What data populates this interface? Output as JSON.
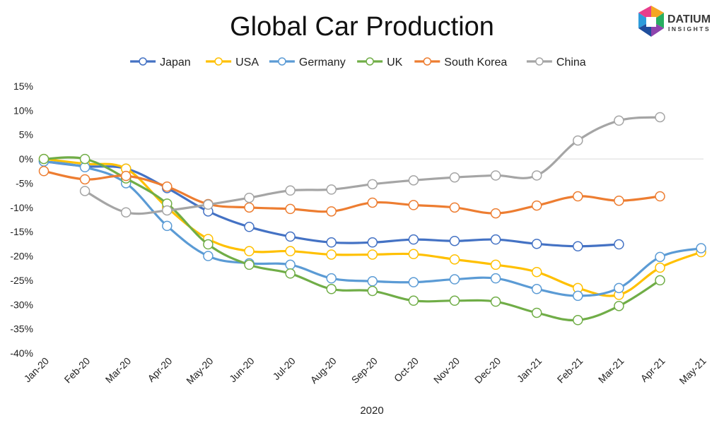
{
  "logo": {
    "name": "DATIUM",
    "sub": "INSIGHTS"
  },
  "chart_data": {
    "type": "line",
    "title": "Global Car Production",
    "xlabel": "2020",
    "ylabel": "",
    "ylim": [
      -40,
      15
    ],
    "yticks": [
      15,
      10,
      5,
      0,
      -5,
      -10,
      -15,
      -20,
      -25,
      -30,
      -35,
      -40
    ],
    "ytick_labels": [
      "15%",
      "10%",
      "5%",
      "0%",
      "-5%",
      "-10%",
      "-15%",
      "-20%",
      "-25%",
      "-30%",
      "-35%",
      "-40%"
    ],
    "grid": "zero-line only",
    "legend_position": "top",
    "categories": [
      "Jan-20",
      "Feb-20",
      "Mar-20",
      "Apr-20",
      "May-20",
      "Jun-20",
      "Jul-20",
      "Aug-20",
      "Sep-20",
      "Oct-20",
      "Nov-20",
      "Dec-20",
      "Jan-21",
      "Feb-21",
      "Mar-21",
      "Apr-21",
      "May-21"
    ],
    "series": [
      {
        "name": "Japan",
        "color": "#4472C4",
        "values": [
          -0.5,
          -1.5,
          -2,
          -6,
          -10.8,
          -14,
          -16,
          -17.2,
          -17.2,
          -16.6,
          -16.9,
          -16.6,
          -17.5,
          -18,
          -17.6,
          null,
          null
        ]
      },
      {
        "name": "USA",
        "color": "#FFC000",
        "values": [
          0,
          -1.0,
          -2,
          -10,
          -16.5,
          -19,
          -19,
          -19.7,
          -19.7,
          -19.6,
          -20.7,
          -21.8,
          -23.3,
          -26.6,
          -28,
          -22.4,
          -19.2
        ]
      },
      {
        "name": "Germany",
        "color": "#5B9BD5",
        "values": [
          -0.5,
          -1.7,
          -5,
          -13.8,
          -20,
          -21.5,
          -21.8,
          -24.6,
          -25.2,
          -25.4,
          -24.8,
          -24.6,
          -26.8,
          -28.2,
          -26.6,
          -20.2,
          -18.4
        ]
      },
      {
        "name": "UK",
        "color": "#70AD47",
        "values": [
          0,
          0,
          -4,
          -9.2,
          -17.6,
          -21.8,
          -23.6,
          -26.8,
          -27.2,
          -29.2,
          -29.2,
          -29.4,
          -31.7,
          -33.2,
          -30.3,
          -25,
          null
        ]
      },
      {
        "name": "South Korea",
        "color": "#ED7D31",
        "values": [
          -2.5,
          -4.2,
          -3.5,
          -5.7,
          -9.3,
          -10,
          -10.3,
          -10.8,
          -9,
          -9.5,
          -10,
          -11.2,
          -9.6,
          -7.7,
          -8.6,
          -7.7,
          null
        ]
      },
      {
        "name": "China",
        "color": "#A5A5A5",
        "values": [
          null,
          -6.6,
          -11,
          -10.6,
          -9.4,
          -8,
          -6.5,
          -6.3,
          -5.2,
          -4.4,
          -3.8,
          -3.4,
          -3.4,
          3.8,
          7.9,
          8.6,
          null
        ]
      }
    ]
  }
}
